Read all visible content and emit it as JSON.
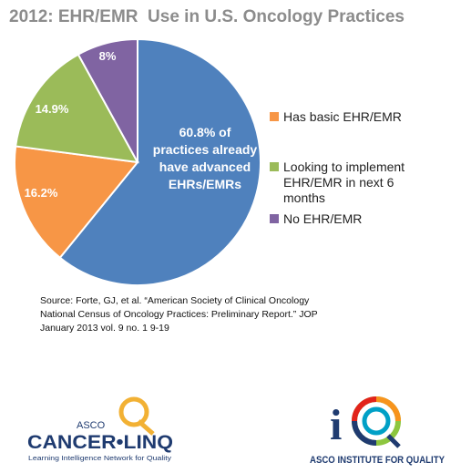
{
  "title": "2012: EHR/EMR  Use in U.S. Oncology Practices",
  "chart_data": {
    "type": "pie",
    "start_angle_deg": 0,
    "direction": "clockwise",
    "slices": [
      {
        "value": 60.8,
        "label_bold": "60.8%",
        "label_rest": " of practices already have advanced EHRs/EMRs",
        "color": "#4f81bd"
      },
      {
        "value": 16.2,
        "label": "16.2%",
        "color": "#f79646"
      },
      {
        "value": 14.9,
        "label": "14.9%",
        "color": "#9bbb59"
      },
      {
        "value": 8,
        "label": "8%",
        "color": "#8064a2"
      }
    ],
    "legend": [
      {
        "text": "Has basic EHR/EMR",
        "color": "#f79646"
      },
      {
        "text": "Looking to implement EHR/EMR in next 6 months",
        "color": "#9bbb59"
      },
      {
        "text": "No EHR/EMR",
        "color": "#8064a2"
      }
    ],
    "legend_placement": "right"
  },
  "source": "Source:  Forte, GJ, et al. “American Society of Clinical Oncology National Census of Oncology Practices: Preliminary Report.” JOP January 2013 vol. 9 no. 1 9-19",
  "logos": {
    "asco_top": "ASCO",
    "asco_main": "CANCER•LINQ",
    "asco_tagline": "Learning Intelligence Network for Quality",
    "iq_text": "ASCO INSTITUTE FOR QUALITY"
  }
}
